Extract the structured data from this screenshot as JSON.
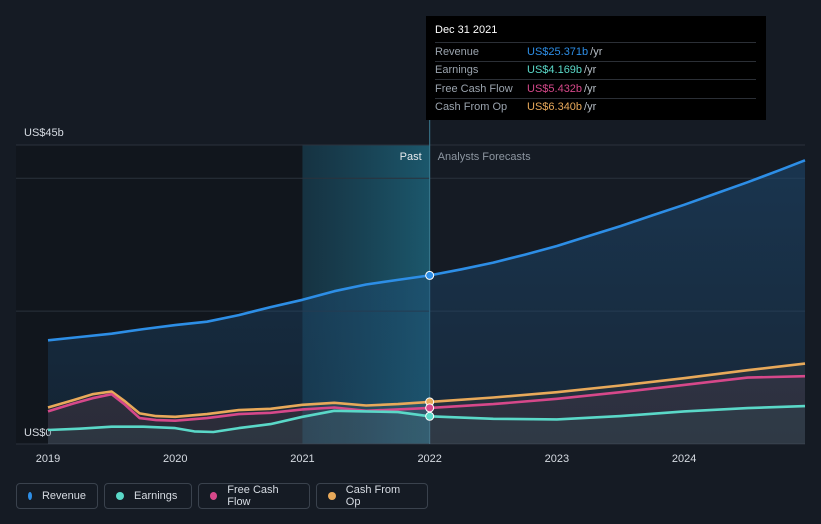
{
  "tooltip": {
    "date": "Dec 31 2021",
    "rows": [
      {
        "label": "Revenue",
        "value": "US$25.371b",
        "unit": "/yr",
        "color": "#2d8ee6"
      },
      {
        "label": "Earnings",
        "value": "US$4.169b",
        "unit": "/yr",
        "color": "#5ad8c8"
      },
      {
        "label": "Free Cash Flow",
        "value": "US$5.432b",
        "unit": "/yr",
        "color": "#d6488a"
      },
      {
        "label": "Cash From Op",
        "value": "US$6.340b",
        "unit": "/yr",
        "color": "#e8a95a"
      }
    ]
  },
  "legend": [
    {
      "label": "Revenue",
      "color": "#2d8ee6"
    },
    {
      "label": "Earnings",
      "color": "#5ad8c8"
    },
    {
      "label": "Free Cash Flow",
      "color": "#d6488a"
    },
    {
      "label": "Cash From Op",
      "color": "#e8a95a"
    }
  ],
  "chart_data": {
    "type": "area",
    "ylabels": {
      "top": "US$45b",
      "bottom": "US$0"
    },
    "ylim": [
      0,
      45
    ],
    "xlim": [
      2019.0,
      2024.95
    ],
    "past_label": "Past",
    "forecast_label": "Analysts Forecasts",
    "divider_x": 2022.0,
    "highlight_start": 2021.0,
    "xticks": [
      {
        "value": 2019,
        "label": "2019"
      },
      {
        "value": 2020,
        "label": "2020"
      },
      {
        "value": 2021,
        "label": "2021"
      },
      {
        "value": 2022,
        "label": "2022"
      },
      {
        "value": 2023,
        "label": "2023"
      },
      {
        "value": 2024,
        "label": "2024"
      }
    ],
    "series": [
      {
        "name": "Revenue",
        "color": "#2d8ee6",
        "fill": true,
        "points": [
          [
            2019.0,
            15.6
          ],
          [
            2019.25,
            16.1
          ],
          [
            2019.5,
            16.6
          ],
          [
            2019.75,
            17.3
          ],
          [
            2020.0,
            17.9
          ],
          [
            2020.25,
            18.4
          ],
          [
            2020.5,
            19.4
          ],
          [
            2020.75,
            20.6
          ],
          [
            2021.0,
            21.7
          ],
          [
            2021.25,
            23.0
          ],
          [
            2021.5,
            24.0
          ],
          [
            2021.75,
            24.7
          ],
          [
            2022.0,
            25.371
          ],
          [
            2022.25,
            26.3
          ],
          [
            2022.5,
            27.3
          ],
          [
            2022.75,
            28.5
          ],
          [
            2023.0,
            29.8
          ],
          [
            2023.25,
            31.3
          ],
          [
            2023.5,
            32.8
          ],
          [
            2023.75,
            34.4
          ],
          [
            2024.0,
            36.0
          ],
          [
            2024.25,
            37.7
          ],
          [
            2024.5,
            39.4
          ],
          [
            2024.75,
            41.2
          ],
          [
            2024.95,
            42.7
          ]
        ]
      },
      {
        "name": "Cash From Op",
        "color": "#e8a95a",
        "fill": false,
        "points": [
          [
            2019.0,
            5.5
          ],
          [
            2019.2,
            6.6
          ],
          [
            2019.35,
            7.5
          ],
          [
            2019.5,
            7.9
          ],
          [
            2019.6,
            6.5
          ],
          [
            2019.72,
            4.6
          ],
          [
            2019.85,
            4.2
          ],
          [
            2020.0,
            4.1
          ],
          [
            2020.25,
            4.5
          ],
          [
            2020.5,
            5.1
          ],
          [
            2020.75,
            5.3
          ],
          [
            2021.0,
            5.9
          ],
          [
            2021.25,
            6.2
          ],
          [
            2021.5,
            5.8
          ],
          [
            2021.75,
            6.0
          ],
          [
            2022.0,
            6.34
          ],
          [
            2022.5,
            7.0
          ],
          [
            2023.0,
            7.8
          ],
          [
            2023.5,
            8.8
          ],
          [
            2024.0,
            9.9
          ],
          [
            2024.5,
            11.1
          ],
          [
            2024.95,
            12.1
          ]
        ]
      },
      {
        "name": "Free Cash Flow",
        "color": "#d6488a",
        "fill": false,
        "points": [
          [
            2019.0,
            4.9
          ],
          [
            2019.2,
            6.1
          ],
          [
            2019.35,
            6.9
          ],
          [
            2019.5,
            7.5
          ],
          [
            2019.6,
            6.0
          ],
          [
            2019.72,
            3.9
          ],
          [
            2019.85,
            3.6
          ],
          [
            2020.0,
            3.5
          ],
          [
            2020.25,
            3.9
          ],
          [
            2020.5,
            4.5
          ],
          [
            2020.75,
            4.7
          ],
          [
            2021.0,
            5.2
          ],
          [
            2021.25,
            5.5
          ],
          [
            2021.5,
            5.0
          ],
          [
            2021.75,
            5.2
          ],
          [
            2022.0,
            5.432
          ],
          [
            2022.5,
            6.0
          ],
          [
            2023.0,
            6.8
          ],
          [
            2023.5,
            7.8
          ],
          [
            2024.0,
            8.9
          ],
          [
            2024.5,
            10.0
          ],
          [
            2024.95,
            10.2
          ]
        ]
      },
      {
        "name": "Earnings",
        "color": "#5ad8c8",
        "fill": false,
        "points": [
          [
            2019.0,
            2.1
          ],
          [
            2019.25,
            2.3
          ],
          [
            2019.5,
            2.6
          ],
          [
            2019.75,
            2.6
          ],
          [
            2020.0,
            2.4
          ],
          [
            2020.15,
            1.9
          ],
          [
            2020.3,
            1.8
          ],
          [
            2020.5,
            2.4
          ],
          [
            2020.75,
            3.0
          ],
          [
            2021.0,
            4.1
          ],
          [
            2021.25,
            5.0
          ],
          [
            2021.5,
            4.9
          ],
          [
            2021.75,
            4.8
          ],
          [
            2022.0,
            4.169
          ],
          [
            2022.5,
            3.8
          ],
          [
            2023.0,
            3.7
          ],
          [
            2023.5,
            4.2
          ],
          [
            2024.0,
            4.9
          ],
          [
            2024.5,
            5.4
          ],
          [
            2024.95,
            5.7
          ]
        ]
      }
    ]
  }
}
